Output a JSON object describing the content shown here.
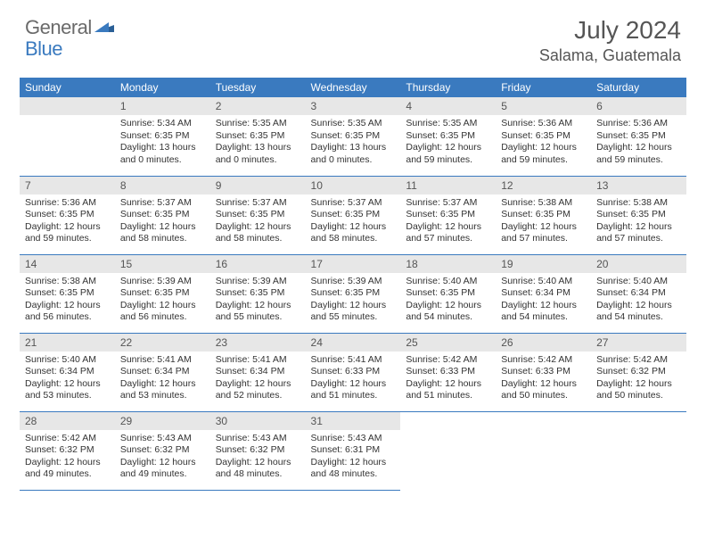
{
  "logo": {
    "word1": "General",
    "word2": "Blue"
  },
  "title": "July 2024",
  "location": "Salama, Guatemala",
  "colors": {
    "header_blue": "#3a7abf",
    "logo_gray": "#6a6a6a",
    "day_bar_gray": "#e7e7e7",
    "text": "#333333",
    "title_gray": "#555555",
    "white": "#ffffff"
  },
  "day_headers": [
    "Sunday",
    "Monday",
    "Tuesday",
    "Wednesday",
    "Thursday",
    "Friday",
    "Saturday"
  ],
  "start_offset": 1,
  "days": [
    {
      "n": 1,
      "sunrise": "5:34 AM",
      "sunset": "6:35 PM",
      "daylight": "13 hours and 0 minutes."
    },
    {
      "n": 2,
      "sunrise": "5:35 AM",
      "sunset": "6:35 PM",
      "daylight": "13 hours and 0 minutes."
    },
    {
      "n": 3,
      "sunrise": "5:35 AM",
      "sunset": "6:35 PM",
      "daylight": "13 hours and 0 minutes."
    },
    {
      "n": 4,
      "sunrise": "5:35 AM",
      "sunset": "6:35 PM",
      "daylight": "12 hours and 59 minutes."
    },
    {
      "n": 5,
      "sunrise": "5:36 AM",
      "sunset": "6:35 PM",
      "daylight": "12 hours and 59 minutes."
    },
    {
      "n": 6,
      "sunrise": "5:36 AM",
      "sunset": "6:35 PM",
      "daylight": "12 hours and 59 minutes."
    },
    {
      "n": 7,
      "sunrise": "5:36 AM",
      "sunset": "6:35 PM",
      "daylight": "12 hours and 59 minutes."
    },
    {
      "n": 8,
      "sunrise": "5:37 AM",
      "sunset": "6:35 PM",
      "daylight": "12 hours and 58 minutes."
    },
    {
      "n": 9,
      "sunrise": "5:37 AM",
      "sunset": "6:35 PM",
      "daylight": "12 hours and 58 minutes."
    },
    {
      "n": 10,
      "sunrise": "5:37 AM",
      "sunset": "6:35 PM",
      "daylight": "12 hours and 58 minutes."
    },
    {
      "n": 11,
      "sunrise": "5:37 AM",
      "sunset": "6:35 PM",
      "daylight": "12 hours and 57 minutes."
    },
    {
      "n": 12,
      "sunrise": "5:38 AM",
      "sunset": "6:35 PM",
      "daylight": "12 hours and 57 minutes."
    },
    {
      "n": 13,
      "sunrise": "5:38 AM",
      "sunset": "6:35 PM",
      "daylight": "12 hours and 57 minutes."
    },
    {
      "n": 14,
      "sunrise": "5:38 AM",
      "sunset": "6:35 PM",
      "daylight": "12 hours and 56 minutes."
    },
    {
      "n": 15,
      "sunrise": "5:39 AM",
      "sunset": "6:35 PM",
      "daylight": "12 hours and 56 minutes."
    },
    {
      "n": 16,
      "sunrise": "5:39 AM",
      "sunset": "6:35 PM",
      "daylight": "12 hours and 55 minutes."
    },
    {
      "n": 17,
      "sunrise": "5:39 AM",
      "sunset": "6:35 PM",
      "daylight": "12 hours and 55 minutes."
    },
    {
      "n": 18,
      "sunrise": "5:40 AM",
      "sunset": "6:35 PM",
      "daylight": "12 hours and 54 minutes."
    },
    {
      "n": 19,
      "sunrise": "5:40 AM",
      "sunset": "6:34 PM",
      "daylight": "12 hours and 54 minutes."
    },
    {
      "n": 20,
      "sunrise": "5:40 AM",
      "sunset": "6:34 PM",
      "daylight": "12 hours and 54 minutes."
    },
    {
      "n": 21,
      "sunrise": "5:40 AM",
      "sunset": "6:34 PM",
      "daylight": "12 hours and 53 minutes."
    },
    {
      "n": 22,
      "sunrise": "5:41 AM",
      "sunset": "6:34 PM",
      "daylight": "12 hours and 53 minutes."
    },
    {
      "n": 23,
      "sunrise": "5:41 AM",
      "sunset": "6:34 PM",
      "daylight": "12 hours and 52 minutes."
    },
    {
      "n": 24,
      "sunrise": "5:41 AM",
      "sunset": "6:33 PM",
      "daylight": "12 hours and 51 minutes."
    },
    {
      "n": 25,
      "sunrise": "5:42 AM",
      "sunset": "6:33 PM",
      "daylight": "12 hours and 51 minutes."
    },
    {
      "n": 26,
      "sunrise": "5:42 AM",
      "sunset": "6:33 PM",
      "daylight": "12 hours and 50 minutes."
    },
    {
      "n": 27,
      "sunrise": "5:42 AM",
      "sunset": "6:32 PM",
      "daylight": "12 hours and 50 minutes."
    },
    {
      "n": 28,
      "sunrise": "5:42 AM",
      "sunset": "6:32 PM",
      "daylight": "12 hours and 49 minutes."
    },
    {
      "n": 29,
      "sunrise": "5:43 AM",
      "sunset": "6:32 PM",
      "daylight": "12 hours and 49 minutes."
    },
    {
      "n": 30,
      "sunrise": "5:43 AM",
      "sunset": "6:32 PM",
      "daylight": "12 hours and 48 minutes."
    },
    {
      "n": 31,
      "sunrise": "5:43 AM",
      "sunset": "6:31 PM",
      "daylight": "12 hours and 48 minutes."
    }
  ],
  "labels": {
    "sunrise": "Sunrise: ",
    "sunset": "Sunset: ",
    "daylight": "Daylight: "
  }
}
